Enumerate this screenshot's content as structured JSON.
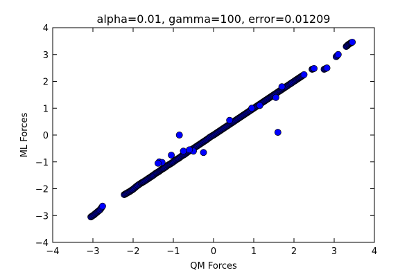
{
  "chart_data": {
    "type": "scatter",
    "title": "alpha=0.01, gamma=100, error=0.01209",
    "xlabel": "QM Forces",
    "ylabel": "ML Forces",
    "xlim": [
      -4,
      4
    ],
    "ylim": [
      -4,
      4
    ],
    "xticks": [
      -4,
      -3,
      -2,
      -1,
      0,
      1,
      2,
      3,
      4
    ],
    "yticks": [
      -4,
      -3,
      -2,
      -1,
      0,
      1,
      2,
      3,
      4
    ],
    "xtick_labels": [
      "−4",
      "−3",
      "−2",
      "−1",
      "0",
      "1",
      "2",
      "3",
      "4"
    ],
    "ytick_labels": [
      "−4",
      "−3",
      "−2",
      "−1",
      "0",
      "1",
      "2",
      "3",
      "4"
    ],
    "grid": false,
    "marker_color": "#0000ff",
    "marker_edge_color": "#000000",
    "series": [
      {
        "diagonal_points": [
          [
            -3.05,
            -3.05
          ],
          [
            -2.98,
            -2.98
          ],
          [
            -2.9,
            -2.88
          ],
          [
            -2.82,
            -2.78
          ],
          [
            -2.76,
            -2.65
          ],
          [
            -2.22,
            -2.22
          ],
          [
            -2.15,
            -2.16
          ],
          [
            -2.08,
            -2.1
          ],
          [
            -2.0,
            -2.02
          ],
          [
            -1.93,
            -1.93
          ],
          [
            -1.88,
            -1.87
          ],
          [
            -1.8,
            -1.79
          ],
          [
            -1.72,
            -1.72
          ],
          [
            -1.65,
            -1.65
          ],
          [
            -1.58,
            -1.58
          ],
          [
            -1.5,
            -1.5
          ],
          [
            -1.43,
            -1.42
          ],
          [
            -1.36,
            -1.36
          ],
          [
            -1.3,
            -1.29
          ],
          [
            -1.22,
            -1.22
          ],
          [
            -1.15,
            -1.14
          ],
          [
            -1.08,
            -1.08
          ],
          [
            -1.0,
            -1.0
          ],
          [
            -0.93,
            -0.92
          ],
          [
            -0.86,
            -0.86
          ],
          [
            -0.79,
            -0.78
          ],
          [
            -0.72,
            -0.72
          ],
          [
            -0.65,
            -0.64
          ],
          [
            -0.58,
            -0.57
          ],
          [
            -0.5,
            -0.5
          ],
          [
            -0.43,
            -0.43
          ],
          [
            -0.36,
            -0.36
          ],
          [
            -0.29,
            -0.29
          ],
          [
            -0.22,
            -0.22
          ],
          [
            -0.15,
            -0.15
          ],
          [
            -0.08,
            -0.07
          ],
          [
            0.0,
            0.0
          ],
          [
            0.07,
            0.07
          ],
          [
            0.14,
            0.14
          ],
          [
            0.21,
            0.21
          ],
          [
            0.28,
            0.28
          ],
          [
            0.35,
            0.35
          ],
          [
            0.42,
            0.42
          ],
          [
            0.5,
            0.5
          ],
          [
            0.57,
            0.57
          ],
          [
            0.64,
            0.64
          ],
          [
            0.71,
            0.71
          ],
          [
            0.78,
            0.78
          ],
          [
            0.85,
            0.85
          ],
          [
            0.92,
            0.92
          ],
          [
            1.0,
            1.0
          ],
          [
            1.07,
            1.07
          ],
          [
            1.14,
            1.14
          ],
          [
            1.21,
            1.21
          ],
          [
            1.28,
            1.28
          ],
          [
            1.35,
            1.35
          ],
          [
            1.42,
            1.42
          ],
          [
            1.5,
            1.5
          ],
          [
            1.57,
            1.57
          ],
          [
            1.64,
            1.64
          ],
          [
            1.72,
            1.72
          ],
          [
            1.8,
            1.8
          ],
          [
            1.88,
            1.88
          ],
          [
            1.95,
            1.95
          ],
          [
            2.03,
            2.03
          ],
          [
            2.1,
            2.1
          ],
          [
            2.18,
            2.18
          ],
          [
            2.25,
            2.25
          ],
          [
            2.45,
            2.45
          ],
          [
            2.5,
            2.48
          ],
          [
            2.75,
            2.45
          ],
          [
            2.82,
            2.5
          ],
          [
            3.05,
            2.92
          ],
          [
            3.1,
            3.0
          ],
          [
            3.3,
            3.3
          ],
          [
            3.36,
            3.38
          ],
          [
            3.41,
            3.43
          ],
          [
            3.45,
            3.46
          ]
        ],
        "outlier_points": [
          [
            -0.85,
            0.0
          ],
          [
            1.6,
            0.1
          ],
          [
            -1.05,
            -0.75
          ],
          [
            -0.25,
            -0.65
          ],
          [
            -1.35,
            -1.0
          ],
          [
            -1.28,
            -1.02
          ],
          [
            -1.38,
            -1.05
          ],
          [
            -0.5,
            -0.6
          ],
          [
            -0.75,
            -0.6
          ],
          [
            -0.6,
            -0.55
          ],
          [
            0.4,
            0.55
          ],
          [
            0.95,
            1.0
          ],
          [
            1.15,
            1.1
          ],
          [
            1.55,
            1.4
          ],
          [
            1.7,
            1.8
          ]
        ]
      }
    ]
  }
}
